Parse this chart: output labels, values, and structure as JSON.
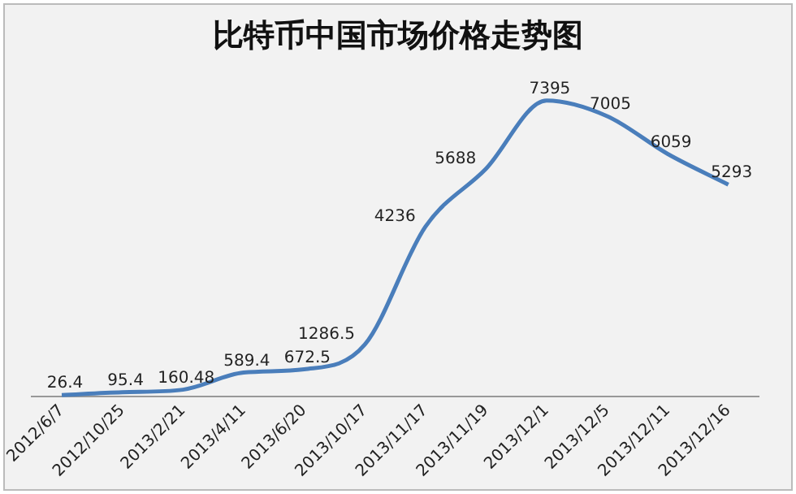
{
  "chart_data": {
    "type": "line",
    "title": "比特币中国市场价格走势图",
    "categories": [
      "2012/6/7",
      "2012/10/25",
      "2013/2/21",
      "2013/4/11",
      "2013/6/20",
      "2013/10/17",
      "2013/11/17",
      "2013/11/19",
      "2013/12/1",
      "2013/12/5",
      "2013/12/11",
      "2013/12/16"
    ],
    "series": [
      {
        "color": "#4a7ebb",
        "values": [
          26.4,
          95.4,
          160.48,
          589.4,
          672.5,
          1286.5,
          4236,
          5688,
          7395,
          7005,
          6059,
          5293
        ]
      }
    ],
    "data_labels": true,
    "grid": false,
    "legend": false,
    "marker": "none",
    "line_style": "solid"
  }
}
